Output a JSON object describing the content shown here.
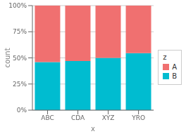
{
  "chart_data": {
    "type": "bar",
    "stacked": true,
    "xlabel": "x",
    "ylabel": "count",
    "categories": [
      "ABC",
      "CDA",
      "XYZ",
      "YRO"
    ],
    "series": [
      {
        "name": "B",
        "color": "#00BCD0",
        "values": [
          0.46,
          0.47,
          0.5,
          0.545
        ]
      },
      {
        "name": "A",
        "color": "#F07070",
        "values": [
          0.54,
          0.53,
          0.5,
          0.455
        ]
      }
    ],
    "ylim": [
      0,
      1.0
    ],
    "yticks": [
      {
        "value": 0,
        "label": "0%"
      },
      {
        "value": 0.25,
        "label": "25%"
      },
      {
        "value": 0.5,
        "label": "50%"
      },
      {
        "value": 0.75,
        "label": "75%"
      },
      {
        "value": 1.0,
        "label": "100%"
      }
    ],
    "grid": true,
    "legend": "right",
    "legend_title": "z"
  }
}
